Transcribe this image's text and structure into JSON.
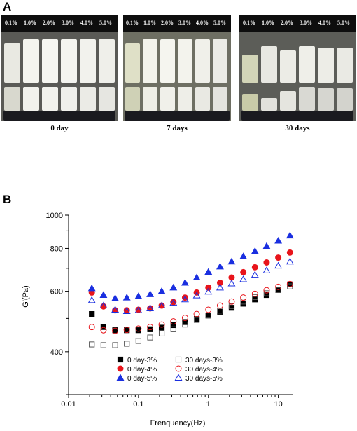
{
  "panel_a": {
    "letter": "A",
    "photos": [
      {
        "caption": "0 day",
        "concentrations": [
          "0.1%",
          "1.0%",
          "2.0%",
          "3.0%",
          "4.0%",
          "5.0%"
        ]
      },
      {
        "caption": "7 days",
        "concentrations": [
          "0.1%",
          "1.0%",
          "2.0%",
          "3.0%",
          "4.0%",
          "5.0%"
        ]
      },
      {
        "caption": "30 days",
        "concentrations": [
          "0.1%",
          "1.0%",
          "2.0%",
          "3.0%",
          "4.0%",
          "5.0%"
        ]
      }
    ]
  },
  "panel_b": {
    "letter": "B"
  },
  "chart_data": {
    "type": "scatter",
    "xlabel": "Frenquency(Hz)",
    "ylabel": "G'(Pa)",
    "x_scale": "log",
    "y_scale": "log",
    "xlim": [
      0.01,
      16
    ],
    "ylim": [
      300,
      1000
    ],
    "x_ticks": [
      "0.01",
      "0.1",
      "1",
      "10"
    ],
    "y_ticks": [
      "400",
      "600",
      "800",
      "1000"
    ],
    "legend_position": "bottom-center",
    "x": [
      0.0215,
      0.0316,
      0.0464,
      0.0681,
      0.1,
      0.147,
      0.215,
      0.316,
      0.464,
      0.681,
      1.0,
      1.47,
      2.15,
      3.16,
      4.64,
      6.81,
      10.0,
      14.7
    ],
    "series": [
      {
        "name": "0 day-3%",
        "marker": "square-filled",
        "color": "#000000",
        "values": [
          515,
          472,
          462,
          462,
          462,
          465,
          470,
          478,
          488,
          498,
          510,
          523,
          537,
          552,
          568,
          585,
          605,
          628
        ]
      },
      {
        "name": "0 day-4%",
        "marker": "circle-filled",
        "color": "#e8141b",
        "values": [
          595,
          542,
          528,
          528,
          530,
          535,
          545,
          558,
          575,
          595,
          615,
          635,
          658,
          682,
          705,
          728,
          752,
          778
        ]
      },
      {
        "name": "0 day-5%",
        "marker": "triangle-filled",
        "color": "#1a2fe0",
        "values": [
          612,
          585,
          572,
          575,
          580,
          588,
          600,
          615,
          635,
          658,
          683,
          708,
          732,
          758,
          785,
          812,
          842,
          872
        ]
      },
      {
        "name": "30 days-3%",
        "marker": "square-open",
        "color": "#555555",
        "values": [
          420,
          418,
          418,
          422,
          430,
          440,
          452,
          465,
          480,
          495,
          510,
          527,
          543,
          560,
          577,
          592,
          605,
          620
        ]
      },
      {
        "name": "30 days-4%",
        "marker": "circle-open",
        "color": "#e8141b",
        "values": [
          472,
          462,
          460,
          463,
          467,
          472,
          480,
          490,
          502,
          515,
          530,
          545,
          560,
          575,
          590,
          604,
          618,
          630
        ]
      },
      {
        "name": "30 days-5%",
        "marker": "triangle-open",
        "color": "#1a2fe0",
        "values": [
          565,
          545,
          530,
          525,
          528,
          535,
          545,
          555,
          568,
          583,
          598,
          615,
          632,
          650,
          670,
          690,
          712,
          732
        ]
      }
    ]
  }
}
